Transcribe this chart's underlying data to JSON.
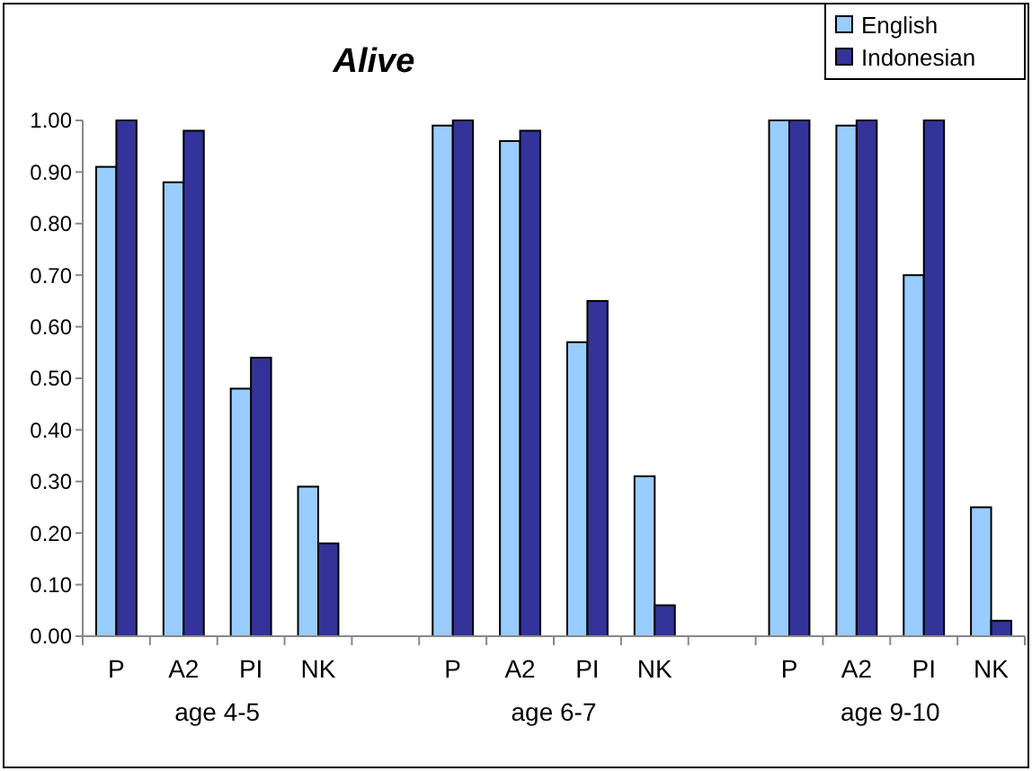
{
  "chart_data": {
    "type": "bar",
    "title": "Alive",
    "categories": [
      "P",
      "A2",
      "PI",
      "NK",
      null,
      "P",
      "A2",
      "PI",
      "NK",
      null,
      "P",
      "A2",
      "PI",
      "NK"
    ],
    "series": [
      {
        "name": "English",
        "color": "#99ccff",
        "values": [
          0.91,
          0.88,
          0.48,
          0.29,
          null,
          0.99,
          0.96,
          0.57,
          0.31,
          null,
          1.0,
          0.99,
          0.7,
          0.25
        ]
      },
      {
        "name": "Indonesian",
        "color": "#333399",
        "values": [
          1.0,
          0.98,
          0.54,
          0.18,
          null,
          1.0,
          0.98,
          0.65,
          0.06,
          null,
          1.0,
          1.0,
          1.0,
          0.03
        ]
      }
    ],
    "ylim": [
      0,
      1
    ],
    "yticks": [
      {
        "value": 0,
        "label": "0.00"
      },
      {
        "value": 0.1,
        "label": "0.10"
      },
      {
        "value": 0.2,
        "label": "0.20"
      },
      {
        "value": 0.3,
        "label": "0.30"
      },
      {
        "value": 0.4,
        "label": "0.40"
      },
      {
        "value": 0.5,
        "label": "0.50"
      },
      {
        "value": 0.6,
        "label": "0.60"
      },
      {
        "value": 0.7,
        "label": "0.70"
      },
      {
        "value": 0.8,
        "label": "0.80"
      },
      {
        "value": 0.9,
        "label": "0.90"
      },
      {
        "value": 1,
        "label": "1.00"
      }
    ],
    "annotations": [
      "age 4-5",
      "age 6-7",
      "age 9-10"
    ],
    "legend": "top right",
    "grid": false
  }
}
